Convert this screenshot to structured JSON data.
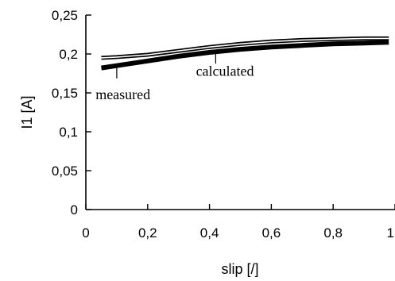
{
  "chart_data": {
    "type": "line",
    "title": "",
    "xlabel": "slip [/]",
    "ylabel": "I1 [A]",
    "xlim": [
      0,
      1
    ],
    "ylim": [
      0,
      0.25
    ],
    "x_ticks": [
      "0",
      "0,2",
      "0,4",
      "0,6",
      "0,8",
      "1"
    ],
    "x_tick_values": [
      0,
      0.2,
      0.4,
      0.6,
      0.8,
      1.0
    ],
    "y_ticks": [
      "0",
      "0,05",
      "0,1",
      "0,15",
      "0,2",
      "0,25"
    ],
    "y_tick_values": [
      0,
      0.05,
      0.1,
      0.15,
      0.2,
      0.25
    ],
    "grid": false,
    "legend": "none",
    "series": [
      {
        "name": "measured",
        "color": "#000000",
        "style": "thick",
        "x": [
          0.05,
          0.1,
          0.2,
          0.3,
          0.4,
          0.5,
          0.6,
          0.7,
          0.8,
          0.9,
          0.98
        ],
        "y": [
          0.182,
          0.185,
          0.191,
          0.197,
          0.202,
          0.206,
          0.209,
          0.211,
          0.213,
          0.214,
          0.215
        ]
      },
      {
        "name": "calculated",
        "color": "#000000",
        "style": "double",
        "x": [
          0.05,
          0.1,
          0.2,
          0.3,
          0.4,
          0.5,
          0.6,
          0.7,
          0.8,
          0.9,
          0.98
        ],
        "y": [
          0.195,
          0.196,
          0.199,
          0.204,
          0.209,
          0.213,
          0.216,
          0.218,
          0.219,
          0.22,
          0.22
        ]
      }
    ],
    "annotations": [
      {
        "text": "measured",
        "x": 0.1,
        "y": 0.186,
        "label_at": [
          0.12,
          0.142
        ]
      },
      {
        "text": "calculated",
        "x": 0.42,
        "y": 0.205,
        "label_at": [
          0.45,
          0.172
        ]
      }
    ]
  }
}
